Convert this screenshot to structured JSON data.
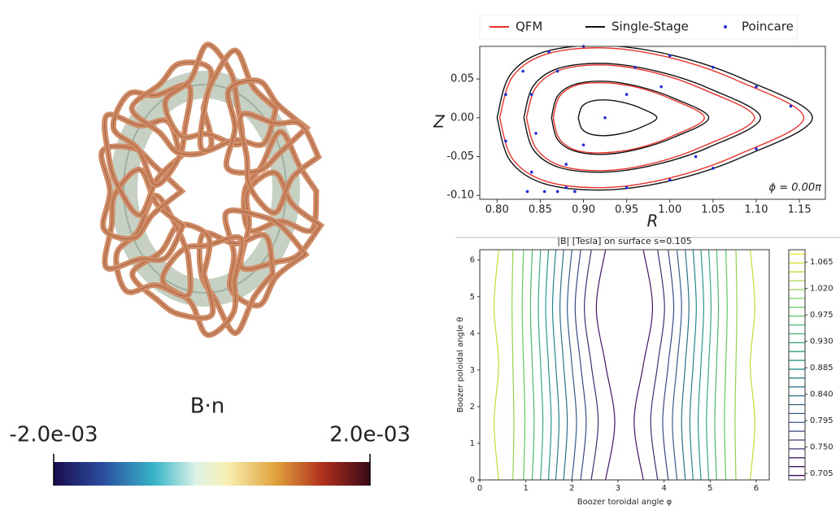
{
  "chart_data": [
    {
      "type": "colorbar",
      "title": "B·n",
      "xlim": [
        -0.002,
        0.002
      ],
      "xticks": [
        {
          "value": -0.002,
          "label": "-2.0e-03"
        },
        {
          "value": 0.002,
          "label": "2.0e-03"
        }
      ]
    },
    {
      "type": "line",
      "xlabel": "R",
      "ylabel": "Z",
      "annotation": "ϕ = 0.00π",
      "legend": "top",
      "xlim": [
        0.78,
        1.18
      ],
      "ylim": [
        -0.105,
        0.092
      ],
      "xticks": [
        {
          "value": 0.8,
          "label": "0.80"
        },
        0.85,
        {
          "value": 0.9,
          "label": "0.90"
        },
        0.95,
        {
          "value": 1.0,
          "label": "1.00"
        },
        1.05,
        {
          "value": 1.1,
          "label": "1.10"
        },
        1.15
      ],
      "yticks": [
        {
          "value": -0.1,
          "label": "-0.10"
        },
        -0.05,
        {
          "value": 0,
          "label": "0.00"
        },
        0.05
      ],
      "series": [
        {
          "name": "QFM",
          "color": "#e8322a",
          "x": [
            0.803,
            0.818,
            0.857,
            0.925,
            1.002,
            1.078,
            1.155,
            1.078,
            1.002,
            0.925,
            0.857,
            0.818,
            0.803,
            null,
            0.834,
            0.845,
            0.874,
            0.925,
            0.983,
            1.04,
            1.098,
            1.04,
            0.983,
            0.925,
            0.874,
            0.845,
            0.834,
            null,
            0.865,
            0.872,
            0.892,
            0.925,
            0.963,
            1.002,
            1.04,
            1.002,
            0.963,
            0.925,
            0.892,
            0.872,
            0.865
          ],
          "values": [
            0,
            0.053,
            0.082,
            0.09,
            0.077,
            0.048,
            0,
            -0.048,
            -0.077,
            -0.09,
            -0.082,
            -0.053,
            0,
            null,
            0,
            0.039,
            0.062,
            0.068,
            0.058,
            0.036,
            0,
            -0.036,
            -0.058,
            -0.068,
            -0.062,
            -0.039,
            0,
            null,
            0,
            0.027,
            0.042,
            0.045,
            0.039,
            0.024,
            0,
            -0.024,
            -0.039,
            -0.045,
            -0.042,
            -0.027,
            0
          ]
        },
        {
          "name": "Single-Stage",
          "color": "#111111",
          "x": [
            0.8,
            0.815,
            0.855,
            0.925,
            1.005,
            1.085,
            1.165,
            1.085,
            1.005,
            0.925,
            0.855,
            0.815,
            0.8,
            null,
            0.831,
            0.842,
            0.872,
            0.925,
            0.985,
            1.045,
            1.105,
            1.045,
            0.985,
            0.925,
            0.872,
            0.842,
            0.831,
            null,
            0.863,
            0.87,
            0.89,
            0.925,
            0.965,
            1.005,
            1.045,
            1.005,
            0.965,
            0.925,
            0.89,
            0.87,
            0.863,
            null,
            0.894,
            0.898,
            0.908,
            0.925,
            0.945,
            0.965,
            0.985,
            0.965,
            0.945,
            0.925,
            0.908,
            0.898,
            0.894
          ],
          "values": [
            0,
            0.055,
            0.085,
            0.093,
            0.08,
            0.05,
            0,
            -0.05,
            -0.08,
            -0.093,
            -0.085,
            -0.055,
            0,
            null,
            0,
            0.041,
            0.064,
            0.07,
            0.06,
            0.038,
            0,
            -0.038,
            -0.06,
            -0.07,
            -0.064,
            -0.041,
            0,
            null,
            0,
            0.028,
            0.043,
            0.047,
            0.04,
            0.025,
            0,
            -0.025,
            -0.04,
            -0.047,
            -0.043,
            -0.028,
            0,
            null,
            0,
            0.014,
            0.021,
            0.023,
            0.02,
            0.013,
            0,
            -0.013,
            -0.02,
            -0.023,
            -0.021,
            -0.014,
            0
          ]
        },
        {
          "name": "Poincare",
          "color": "#1f2bd6",
          "type": "scatter",
          "x": [
            0.925,
            0.81,
            0.81,
            0.83,
            0.84,
            0.86,
            0.88,
            0.9,
            0.95,
            1.0,
            1.05,
            1.1,
            1.14,
            1.1,
            1.05,
            1.0,
            0.84,
            0.845,
            0.87,
            0.88,
            0.96,
            1.03,
            0.99,
            0.9,
            0.95,
            0.835,
            0.855,
            0.87,
            0.89
          ],
          "values": [
            0,
            0.03,
            -0.03,
            0.06,
            -0.07,
            0.085,
            -0.09,
            0.092,
            -0.09,
            0.08,
            0.065,
            0.04,
            0.015,
            -0.04,
            -0.065,
            -0.08,
            0.03,
            -0.02,
            0.06,
            -0.06,
            0.065,
            -0.05,
            0.04,
            -0.035,
            0.03,
            -0.095,
            -0.095,
            -0.095,
            -0.095
          ]
        }
      ]
    },
    {
      "type": "contour",
      "title": "|B| [Tesla] on surface s=0.105",
      "xlabel": "Boozer toroidal angle φ",
      "ylabel": "Boozer poloidal angle θ",
      "xlim": [
        0,
        6.283
      ],
      "ylim": [
        0,
        6.283
      ],
      "xticks": [
        0,
        1,
        2,
        3,
        4,
        5,
        6
      ],
      "yticks": [
        0,
        1,
        2,
        3,
        4,
        5,
        6
      ],
      "colormap": "viridis",
      "clim": [
        0.694,
        1.086
      ],
      "cticks": [
        0.705,
        {
          "value": 0.75,
          "label": "0.750"
        },
        0.795,
        {
          "value": 0.84,
          "label": "0.840"
        },
        0.885,
        {
          "value": 0.93,
          "label": "0.930"
        },
        0.975,
        {
          "value": 1.02,
          "label": "1.020"
        },
        1.065
      ],
      "contours": [
        {
          "level": 0.72,
          "x": [
            2.73,
            2.93,
            2.73,
            2.53,
            2.73,
            null,
            3.55,
            3.35,
            3.55,
            3.75,
            3.55
          ],
          "y": [
            0,
            1.57,
            3.14,
            4.71,
            6.28,
            null,
            0,
            1.57,
            3.14,
            4.71,
            6.28
          ]
        },
        {
          "level": 0.75,
          "x": [
            2.42,
            2.57,
            2.42,
            2.27,
            2.42,
            null,
            3.86,
            3.71,
            3.86,
            4.01,
            3.86
          ],
          "y": [
            0,
            1.57,
            3.14,
            4.71,
            6.28,
            null,
            0,
            1.57,
            3.14,
            4.71,
            6.28
          ]
        },
        {
          "level": 0.78,
          "x": [
            2.19,
            2.31,
            2.19,
            2.07,
            2.19,
            null,
            4.09,
            3.97,
            4.09,
            4.21,
            4.09
          ],
          "y": [
            0,
            1.57,
            3.14,
            4.71,
            6.28,
            null,
            0,
            1.57,
            3.14,
            4.71,
            6.28
          ]
        },
        {
          "level": 0.81,
          "x": [
            2.0,
            2.1,
            2.0,
            1.9,
            2.0,
            null,
            4.28,
            4.18,
            4.28,
            4.38,
            4.28
          ],
          "y": [
            0,
            1.57,
            3.14,
            4.71,
            6.28,
            null,
            0,
            1.57,
            3.14,
            4.71,
            6.28
          ]
        },
        {
          "level": 0.84,
          "x": [
            1.82,
            1.9,
            1.82,
            1.74,
            1.82,
            null,
            4.46,
            4.38,
            4.46,
            4.54,
            4.46
          ],
          "y": [
            0,
            1.57,
            3.14,
            4.71,
            6.28,
            null,
            0,
            1.57,
            3.14,
            4.71,
            6.28
          ]
        },
        {
          "level": 0.87,
          "x": [
            1.65,
            1.72,
            1.65,
            1.58,
            1.65,
            null,
            4.63,
            4.56,
            4.63,
            4.7,
            4.63
          ],
          "y": [
            0,
            1.57,
            3.14,
            4.71,
            6.28,
            null,
            0,
            1.57,
            3.14,
            4.71,
            6.28
          ]
        },
        {
          "level": 0.9,
          "x": [
            1.49,
            1.55,
            1.49,
            1.43,
            1.49,
            null,
            4.8,
            4.74,
            4.8,
            4.86,
            4.8
          ],
          "y": [
            0,
            1.57,
            3.14,
            4.71,
            6.28,
            null,
            0,
            1.57,
            3.14,
            4.71,
            6.28
          ]
        },
        {
          "level": 0.93,
          "x": [
            1.32,
            1.37,
            1.32,
            1.27,
            1.32,
            null,
            4.97,
            4.92,
            4.97,
            5.02,
            4.97
          ],
          "y": [
            0,
            1.57,
            3.14,
            4.71,
            6.28,
            null,
            0,
            1.57,
            3.14,
            4.71,
            6.28
          ]
        },
        {
          "level": 0.96,
          "x": [
            1.14,
            1.18,
            1.14,
            1.1,
            1.14,
            null,
            5.14,
            5.1,
            5.14,
            5.18,
            5.14
          ],
          "y": [
            0,
            1.57,
            3.14,
            4.71,
            6.28,
            null,
            0,
            1.57,
            3.14,
            4.71,
            6.28
          ]
        },
        {
          "level": 0.99,
          "x": [
            0.95,
            0.98,
            0.95,
            0.92,
            0.95,
            null,
            5.34,
            5.31,
            5.34,
            5.37,
            5.34
          ],
          "y": [
            0,
            1.57,
            3.14,
            4.71,
            6.28,
            null,
            0,
            1.57,
            3.14,
            4.71,
            6.28
          ]
        },
        {
          "level": 1.02,
          "x": [
            0.72,
            0.74,
            0.72,
            0.7,
            0.72,
            null,
            5.56,
            5.54,
            5.56,
            5.58,
            5.56
          ],
          "y": [
            0,
            1.57,
            3.14,
            4.71,
            6.28,
            null,
            0,
            1.57,
            3.14,
            4.71,
            6.28
          ]
        },
        {
          "level": 1.05,
          "x": [
            0.41,
            0.31,
            0.41,
            0.31,
            0.41,
            null,
            5.87,
            5.97,
            5.87,
            5.97,
            5.87
          ],
          "y": [
            0,
            1.57,
            3.14,
            4.71,
            6.28,
            null,
            0,
            1.57,
            3.14,
            4.71,
            6.28
          ]
        }
      ]
    }
  ]
}
